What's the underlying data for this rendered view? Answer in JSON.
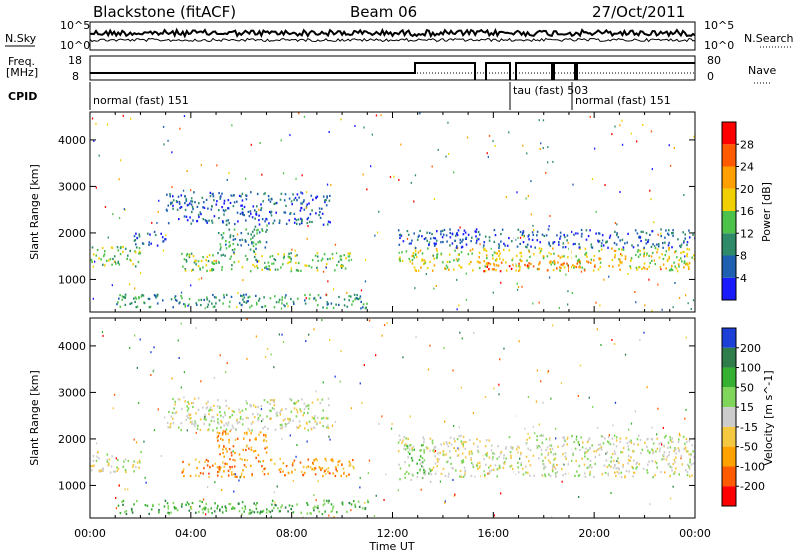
{
  "header": {
    "station": "Blackstone (fitACF)",
    "beam": "Beam 06",
    "date": "27/Oct/2011"
  },
  "noise_panel": {
    "left_label": "N.Sky",
    "right_label": "N.Search",
    "left_ticks": [
      "10^5",
      "10^0"
    ],
    "right_ticks": [
      "10^5",
      "10^0"
    ]
  },
  "freq_panel": {
    "left_label_1": "Freq.",
    "left_label_2": "[MHz]",
    "left_ticks": [
      "18",
      "8"
    ],
    "right_label": "Nave",
    "right_ticks": [
      "80",
      "0"
    ]
  },
  "cpid": {
    "label": "CPID",
    "modes": [
      {
        "text": "normal (fast) 151",
        "start_hour": 0.0
      },
      {
        "text": "tau (fast) 503",
        "start_hour": 16.8
      },
      {
        "text": "normal (fast) 151",
        "start_hour": 19.0
      }
    ]
  },
  "chart_data": [
    {
      "type": "heatmap",
      "name": "power",
      "ylabel": "Slant Range [km]",
      "xlabel": "Time UT",
      "x_ticks": [
        "00:00",
        "04:00",
        "08:00",
        "12:00",
        "16:00",
        "20:00",
        "00:00"
      ],
      "y_ticks": [
        1000,
        2000,
        3000,
        4000
      ],
      "ylim": [
        300,
        4600
      ],
      "xlim_hours": [
        0,
        24
      ],
      "colorbar": {
        "label": "Power [dB]",
        "ticks": [
          "4",
          "8",
          "12",
          "16",
          "20",
          "24",
          "28"
        ],
        "colors": [
          "#1a1aff",
          "#1f5fb0",
          "#2e8b6a",
          "#4cc24a",
          "#f0d000",
          "#ffa000",
          "#ff5a00",
          "#ff0000"
        ]
      },
      "regions": [
        {
          "t0": 0.0,
          "t1": 2.0,
          "r0": 1300,
          "r1": 1750,
          "level": 3
        },
        {
          "t0": 1.7,
          "t1": 3.0,
          "r0": 1750,
          "r1": 2100,
          "level": 1
        },
        {
          "t0": 3.6,
          "t1": 10.5,
          "r0": 1200,
          "r1": 1600,
          "level": 3
        },
        {
          "t0": 5.0,
          "t1": 7.0,
          "r0": 1600,
          "r1": 2200,
          "level": 2
        },
        {
          "t0": 3.0,
          "t1": 9.5,
          "r0": 2200,
          "r1": 2900,
          "level": 1
        },
        {
          "t0": 1.0,
          "t1": 11.0,
          "r0": 400,
          "r1": 700,
          "level": 2
        },
        {
          "t0": 12.2,
          "t1": 24.0,
          "r0": 1200,
          "r1": 1700,
          "level": 4
        },
        {
          "t0": 12.2,
          "t1": 24.0,
          "r0": 1700,
          "r1": 2100,
          "level": 1
        },
        {
          "t0": 15.5,
          "t1": 20.0,
          "r0": 1200,
          "r1": 1400,
          "level": 6
        }
      ]
    },
    {
      "type": "heatmap",
      "name": "velocity",
      "ylabel": "Slant Range [km]",
      "xlabel": "Time UT",
      "x_ticks": [
        "00:00",
        "04:00",
        "08:00",
        "12:00",
        "16:00",
        "20:00",
        "00:00"
      ],
      "y_ticks": [
        1000,
        2000,
        3000,
        4000
      ],
      "ylim": [
        300,
        4600
      ],
      "xlim_hours": [
        0,
        24
      ],
      "colorbar": {
        "label": "Velocity [m s^-1]",
        "ticks": [
          "200",
          "100",
          "50",
          "15",
          "-15",
          "-50",
          "-100",
          "-200"
        ],
        "colors": [
          "#1c3fd8",
          "#2e7d4a",
          "#36b030",
          "#7fd65a",
          "#cccccc",
          "#f5c842",
          "#ffa200",
          "#ff5a00",
          "#ff0000"
        ]
      },
      "regions": [
        {
          "t0": 0.0,
          "t1": 2.0,
          "r0": 1300,
          "r1": 1750,
          "level": 4
        },
        {
          "t0": 3.6,
          "t1": 10.5,
          "r0": 1200,
          "r1": 1600,
          "level": 6
        },
        {
          "t0": 5.0,
          "t1": 7.0,
          "r0": 1600,
          "r1": 2200,
          "level": 6
        },
        {
          "t0": 3.0,
          "t1": 9.5,
          "r0": 2200,
          "r1": 2900,
          "level": 4
        },
        {
          "t0": 1.0,
          "t1": 11.0,
          "r0": 400,
          "r1": 700,
          "level": 2
        },
        {
          "t0": 12.2,
          "t1": 13.5,
          "r0": 1100,
          "r1": 1900,
          "level": 3
        },
        {
          "t0": 13.5,
          "t1": 24.0,
          "r0": 1200,
          "r1": 1750,
          "level": 4
        },
        {
          "t0": 12.2,
          "t1": 24.0,
          "r0": 1750,
          "r1": 2100,
          "level": 4
        }
      ]
    }
  ]
}
